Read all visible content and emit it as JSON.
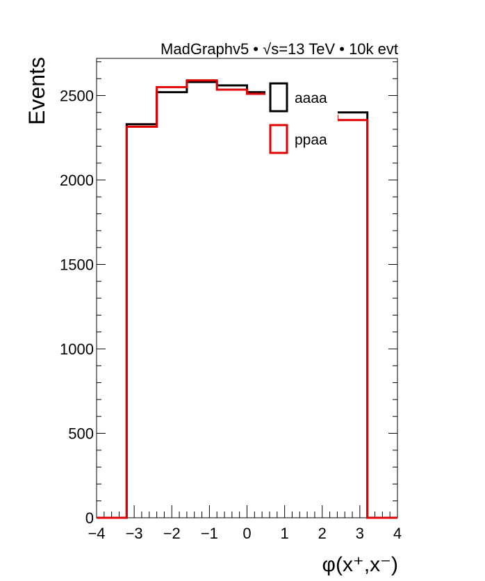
{
  "chart_data": {
    "type": "histogram",
    "header": "MadGraphv5 • √s=13 TeV • 10k evt",
    "xlabel": "φ(x⁺,x⁻)",
    "ylabel": "Events",
    "xlim": [
      -4,
      4
    ],
    "ylim": [
      0,
      2720
    ],
    "x_ticks": [
      "−4",
      "−3",
      "−2",
      "−1",
      "0",
      "1",
      "2",
      "3",
      "4"
    ],
    "y_ticks": [
      "0",
      "500",
      "1000",
      "1500",
      "2000",
      "2500"
    ],
    "bin_edges": [
      -4.0,
      -3.2,
      -2.4,
      -1.6,
      -0.8,
      0.0,
      0.8,
      1.6,
      2.4,
      3.2,
      4.0
    ],
    "legend_position": "top-right",
    "series": [
      {
        "name": "aaaa",
        "color": "#000000",
        "values": [
          0,
          2330,
          2520,
          2580,
          2560,
          2520,
          2440,
          2400,
          2400,
          0
        ]
      },
      {
        "name": "ppaa",
        "color": "#e00000",
        "values": [
          0,
          2315,
          2550,
          2590,
          2535,
          2510,
          2400,
          2380,
          2355,
          0
        ]
      }
    ]
  }
}
